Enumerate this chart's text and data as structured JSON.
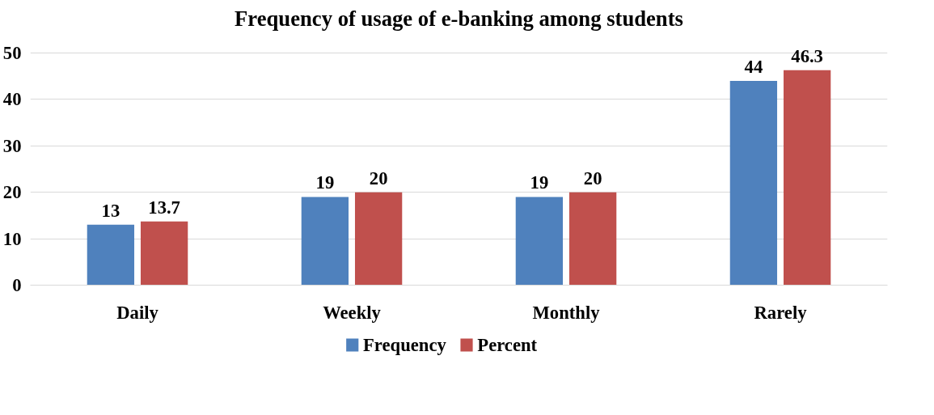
{
  "chart_data": {
    "type": "bar",
    "title": "Frequency of usage of e-banking among students",
    "categories": [
      "Daily",
      "Weekly",
      "Monthly",
      "Rarely"
    ],
    "series": [
      {
        "name": "Frequency",
        "color": "#4f81bd",
        "values": [
          13,
          19,
          19,
          44
        ]
      },
      {
        "name": "Percent",
        "color": "#c0504d",
        "values": [
          13.7,
          20,
          20,
          46.3
        ]
      }
    ],
    "ylim": [
      0,
      50
    ],
    "yticks": [
      0,
      10,
      20,
      30,
      40,
      50
    ],
    "grid": "y",
    "legend": "bottom",
    "data_labels": true
  }
}
